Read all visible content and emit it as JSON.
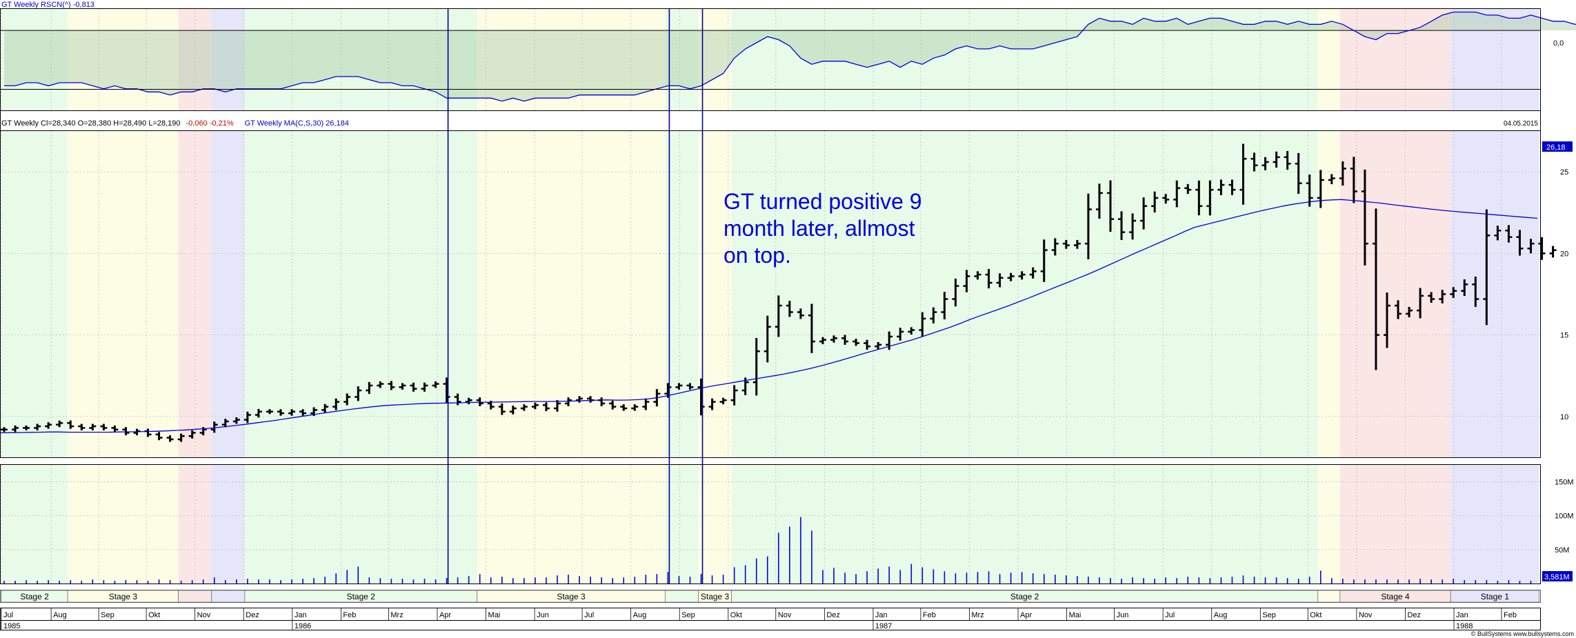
{
  "colors": {
    "stage1": "#e6e6fb",
    "stage2": "#e8fbe8",
    "stage3": "#fdfde6",
    "stage4": "#fbe6e6",
    "bars": "#000000",
    "line": "#0000dd",
    "neg_pct": "#cc0000",
    "grid": "#bdbdbd",
    "area": "rgba(170,205,170,0.45)",
    "event_line": "#000099",
    "vol_bars": "#0000ee",
    "stage_bar": "#e6fbe6",
    "stage_bar_label": "#000000"
  },
  "panels": {
    "rs": {
      "title": "GT  Weekly  RSCN(^) -0,813",
      "zero_label": "0,0"
    },
    "price": {
      "header_text": "GT  Weekly    Cl=28,340  O=28,380  H=28,490  L=28,190",
      "header_change": "-0,060  -0,21%",
      "header_ma": "GT  Weekly  MA(C,S,30) 26,184",
      "date_label": "04.05.2015",
      "ma_last_label": "26,18",
      "annotation": [
        "GT turned positive 9",
        "month later, allmost",
        "on top."
      ]
    },
    "volume": {
      "last_label": "3,581M"
    }
  },
  "footer": {
    "copyright": "© BullSystems  www.bullsystems.com"
  },
  "chart_data": {
    "type": "bar",
    "title": "GT Weekly",
    "period": "Jul 1985 – Feb 1988",
    "price_ticks": [
      10,
      15,
      20,
      25
    ],
    "price_ylim": [
      7.5,
      27.5
    ],
    "volume_ticks": [
      {
        "value": 50,
        "label": "50M"
      },
      {
        "value": 100,
        "label": "100M"
      },
      {
        "value": 150,
        "label": "150M"
      }
    ],
    "volume_ylim": [
      0,
      175
    ],
    "rs_ylim": [
      -0.26,
      0.07
    ],
    "months": [
      {
        "label": "Jul",
        "start": 0
      },
      {
        "label": "Aug",
        "start": 4.5
      },
      {
        "label": "Sep",
        "start": 8.8
      },
      {
        "label": "Okt",
        "start": 13.1
      },
      {
        "label": "Nov",
        "start": 17.5
      },
      {
        "label": "Dez",
        "start": 21.9
      },
      {
        "label": "Jan",
        "start": 26.3
      },
      {
        "label": "Feb",
        "start": 30.7
      },
      {
        "label": "Mrz",
        "start": 35
      },
      {
        "label": "Apr",
        "start": 39.4
      },
      {
        "label": "Mai",
        "start": 43.8
      },
      {
        "label": "Jun",
        "start": 48.2
      },
      {
        "label": "Jul",
        "start": 52.5
      },
      {
        "label": "Aug",
        "start": 56.9
      },
      {
        "label": "Sep",
        "start": 61.3
      },
      {
        "label": "Okt",
        "start": 65.7
      },
      {
        "label": "Nov",
        "start": 70
      },
      {
        "label": "Dez",
        "start": 74.4
      },
      {
        "label": "Jan",
        "start": 78.8
      },
      {
        "label": "Feb",
        "start": 83.1
      },
      {
        "label": "Mrz",
        "start": 87.5
      },
      {
        "label": "Apr",
        "start": 91.9
      },
      {
        "label": "Mai",
        "start": 96.3
      },
      {
        "label": "Jun",
        "start": 100.6
      },
      {
        "label": "Jul",
        "start": 105
      },
      {
        "label": "Aug",
        "start": 109.4
      },
      {
        "label": "Sep",
        "start": 113.8
      },
      {
        "label": "Okt",
        "start": 118.1
      },
      {
        "label": "Nov",
        "start": 122.5
      },
      {
        "label": "Dez",
        "start": 126.9
      },
      {
        "label": "Jan",
        "start": 131.3
      },
      {
        "label": "Feb",
        "start": 135.6
      }
    ],
    "years": [
      {
        "label": "1985",
        "start": 0
      },
      {
        "label": "1986",
        "start": 26.3
      },
      {
        "label": "1987",
        "start": 78.8
      },
      {
        "label": "1988",
        "start": 131.3
      }
    ],
    "stages": [
      {
        "label": "Stage 2",
        "stage": 2,
        "start": 0,
        "end": 6
      },
      {
        "label": "Stage 3",
        "stage": 3,
        "start": 6,
        "end": 16
      },
      {
        "label": "",
        "stage": 4,
        "start": 16,
        "end": 19
      },
      {
        "label": "",
        "stage": 1,
        "start": 19,
        "end": 22
      },
      {
        "label": "Stage 2",
        "stage": 2,
        "start": 22,
        "end": 43
      },
      {
        "label": "Stage 3",
        "stage": 3,
        "start": 43,
        "end": 60
      },
      {
        "label": "",
        "stage": 2,
        "start": 60,
        "end": 63
      },
      {
        "label": "Stage 3",
        "stage": 3,
        "start": 63,
        "end": 66
      },
      {
        "label": "Stage 2",
        "stage": 2,
        "start": 66,
        "end": 119
      },
      {
        "label": "",
        "stage": 3,
        "start": 119,
        "end": 121
      },
      {
        "label": "Stage 4",
        "stage": 4,
        "start": 121,
        "end": 131
      },
      {
        "label": "Stage 1",
        "stage": 1,
        "start": 131,
        "end": 139
      }
    ],
    "event_weeks": [
      40,
      60,
      63
    ],
    "weekly_close": [
      9.2,
      9.3,
      9.3,
      9.4,
      9.5,
      9.6,
      9.4,
      9.3,
      9.4,
      9.3,
      9.2,
      9.0,
      9.1,
      8.9,
      8.7,
      8.6,
      8.8,
      9.0,
      9.2,
      9.5,
      9.7,
      9.8,
      10.1,
      10.3,
      10.3,
      10.2,
      10.3,
      10.2,
      10.4,
      10.6,
      10.9,
      11.2,
      11.6,
      11.9,
      12.0,
      11.8,
      11.9,
      11.7,
      11.9,
      12.0,
      11.2,
      10.9,
      11.0,
      10.8,
      10.6,
      10.3,
      10.5,
      10.6,
      10.7,
      10.5,
      10.8,
      11.0,
      11.1,
      11.0,
      10.8,
      10.6,
      10.5,
      10.6,
      10.9,
      11.4,
      11.8,
      11.9,
      11.8,
      10.6,
      10.9,
      11.0,
      11.6,
      12.1,
      14.0,
      15.5,
      16.8,
      16.4,
      16.2,
      14.6,
      14.7,
      14.8,
      14.6,
      14.5,
      14.3,
      14.4,
      14.9,
      15.2,
      15.3,
      16.0,
      16.4,
      17.2,
      18.0,
      18.6,
      18.7,
      18.2,
      18.5,
      18.6,
      18.7,
      18.9,
      20.2,
      20.6,
      20.5,
      20.6,
      22.7,
      23.7,
      22.1,
      21.3,
      22.0,
      22.9,
      23.4,
      23.3,
      24.0,
      23.9,
      22.9,
      23.9,
      24.2,
      23.9,
      25.8,
      25.4,
      25.6,
      25.9,
      25.5,
      24.3,
      23.4,
      24.5,
      24.6,
      25.2,
      23.8,
      20.6,
      15.0,
      16.8,
      16.3,
      16.5,
      17.4,
      17.2,
      17.5,
      17.7,
      18.1,
      17.2,
      21.1,
      21.4,
      21.0,
      20.3,
      20.6,
      20.0,
      20.2
    ],
    "weekly_ma30": [
      9.0,
      9.01,
      9.02,
      9.03,
      9.04,
      9.05,
      9.05,
      9.04,
      9.04,
      9.04,
      9.04,
      9.04,
      9.05,
      9.06,
      9.07,
      9.08,
      9.1,
      9.12,
      9.15,
      9.18,
      9.22,
      9.26,
      9.32,
      9.38,
      9.45,
      9.52,
      9.6,
      9.68,
      9.76,
      9.85,
      9.94,
      10.03,
      10.12,
      10.21,
      10.3,
      10.38,
      10.46,
      10.53,
      10.6,
      10.66,
      10.7,
      10.73,
      10.76,
      10.79,
      10.81,
      10.82,
      10.83,
      10.84,
      10.86,
      10.87,
      10.88,
      10.89,
      10.9,
      10.91,
      10.92,
      10.92,
      10.92,
      10.93,
      10.94,
      10.96,
      10.98,
      11.0,
      11.02,
      11.0,
      11.01,
      11.03,
      11.07,
      11.15,
      11.26,
      11.39,
      11.53,
      11.66,
      11.79,
      11.9,
      12.0,
      12.1,
      12.2,
      12.3,
      12.4,
      12.5,
      12.6,
      12.72,
      12.85,
      12.99,
      13.14,
      13.3,
      13.47,
      13.65,
      13.83,
      14.0,
      14.17,
      14.34,
      14.51,
      14.68,
      14.87,
      15.07,
      15.27,
      15.47,
      15.7,
      15.94,
      16.16,
      16.37,
      16.58,
      16.8,
      17.03,
      17.26,
      17.5,
      17.74,
      17.98,
      18.22,
      18.46,
      18.7,
      18.96,
      19.23,
      19.5,
      19.77,
      20.04,
      20.3,
      20.56,
      20.82,
      21.08,
      21.35,
      21.6,
      21.75,
      21.9,
      22.05,
      22.2,
      22.35,
      22.5,
      22.64,
      22.77,
      22.9,
      23.01,
      23.1,
      23.18,
      23.24,
      23.28,
      23.3,
      23.25,
      23.2,
      23.14,
      23.08,
      23.0,
      22.93,
      22.86,
      22.79,
      22.72,
      22.66,
      22.6,
      22.55,
      22.5,
      22.45,
      22.4,
      22.35,
      22.3,
      22.25,
      22.2,
      22.15
    ],
    "weekly_volume_m": [
      4,
      4,
      5,
      4,
      5,
      4,
      5,
      4,
      6,
      5,
      4,
      5,
      5,
      4,
      6,
      5,
      4,
      5,
      6,
      9,
      5,
      6,
      7,
      6,
      6,
      5,
      6,
      7,
      8,
      10,
      15,
      20,
      25,
      9,
      8,
      7,
      7,
      6,
      7,
      6,
      8,
      9,
      11,
      14,
      9,
      10,
      8,
      8,
      9,
      9,
      12,
      13,
      11,
      10,
      9,
      8,
      9,
      10,
      13,
      14,
      17,
      11,
      10,
      14,
      12,
      13,
      24,
      27,
      37,
      40,
      75,
      84,
      98,
      78,
      20,
      23,
      16,
      14,
      18,
      22,
      25,
      20,
      29,
      24,
      21,
      18,
      15,
      16,
      17,
      18,
      14,
      16,
      17,
      15,
      14,
      13,
      12,
      11,
      10,
      9,
      8,
      7,
      9,
      8,
      7,
      9,
      8,
      10,
      9,
      8,
      9,
      10,
      12,
      10,
      9,
      9,
      8,
      7,
      10,
      19,
      8,
      7,
      6,
      6,
      6,
      6,
      6,
      6,
      7,
      6,
      6,
      7,
      5,
      5,
      5,
      4,
      5,
      4,
      4
    ],
    "weekly_rs": [
      -0.18,
      -0.18,
      -0.17,
      -0.17,
      -0.18,
      -0.17,
      -0.17,
      -0.17,
      -0.18,
      -0.19,
      -0.18,
      -0.19,
      -0.19,
      -0.2,
      -0.2,
      -0.21,
      -0.2,
      -0.2,
      -0.19,
      -0.19,
      -0.2,
      -0.19,
      -0.19,
      -0.19,
      -0.19,
      -0.19,
      -0.18,
      -0.17,
      -0.17,
      -0.16,
      -0.15,
      -0.15,
      -0.15,
      -0.16,
      -0.17,
      -0.17,
      -0.18,
      -0.18,
      -0.19,
      -0.2,
      -0.22,
      -0.22,
      -0.22,
      -0.22,
      -0.22,
      -0.23,
      -0.22,
      -0.23,
      -0.22,
      -0.22,
      -0.22,
      -0.22,
      -0.21,
      -0.21,
      -0.21,
      -0.21,
      -0.21,
      -0.21,
      -0.2,
      -0.19,
      -0.18,
      -0.18,
      -0.19,
      -0.18,
      -0.16,
      -0.14,
      -0.09,
      -0.06,
      -0.04,
      -0.02,
      -0.03,
      -0.05,
      -0.09,
      -0.11,
      -0.1,
      -0.1,
      -0.1,
      -0.11,
      -0.12,
      -0.11,
      -0.1,
      -0.12,
      -0.1,
      -0.11,
      -0.09,
      -0.08,
      -0.06,
      -0.05,
      -0.06,
      -0.06,
      -0.05,
      -0.06,
      -0.06,
      -0.06,
      -0.05,
      -0.04,
      -0.03,
      -0.02,
      0.02,
      0.04,
      0.03,
      0.03,
      0.02,
      0.04,
      0.03,
      0.03,
      0.04,
      0.02,
      0.03,
      0.04,
      0.04,
      0.03,
      0.02,
      0.02,
      0.03,
      0.03,
      0.02,
      0.03,
      0.02,
      0.02,
      0.03,
      0.02,
      0.0,
      -0.02,
      -0.03,
      -0.01,
      -0.01,
      0.0,
      0.01,
      0.03,
      0.05,
      0.06,
      0.06,
      0.06,
      0.05,
      0.05,
      0.04,
      0.04,
      0.05,
      0.04,
      0.03,
      0.03,
      0.02,
      0.03,
      0.04,
      0.03,
      0.04,
      0.04,
      0.04,
      0.04
    ]
  }
}
